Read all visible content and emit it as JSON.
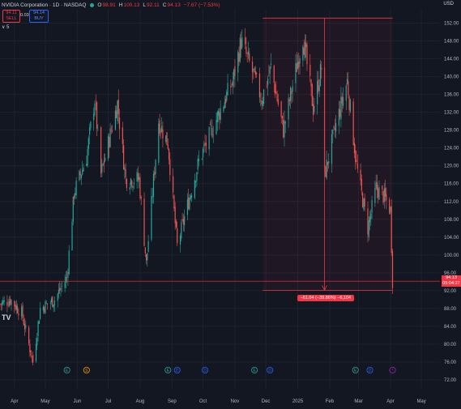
{
  "header": {
    "symbol": "NVIDIA Corporation · 1D · NASDAQ",
    "o_label": "O",
    "o_value": "98.91",
    "h_label": "H",
    "h_value": "100.13",
    "l_label": "L",
    "l_value": "92.11",
    "c_label": "C",
    "c_value": "94.13",
    "change": "−7.67 (−7.53%)"
  },
  "trade": {
    "sell_price": "94.11",
    "sell_label": "SELL",
    "spread": "0.03",
    "buy_price": "94.14",
    "buy_label": "BUY"
  },
  "volume_indicator": "∨ 5",
  "currency": "USD",
  "last_price": {
    "value": "94.13",
    "countdown": "05:04:27"
  },
  "measure": {
    "label": "−61.04 (−39.86%) −6,104"
  },
  "logo_text": "TV",
  "colors": {
    "up": "#26a69a",
    "down": "#ef5350",
    "measure": "#f23645",
    "background": "#131722",
    "grid": "#1e222d"
  },
  "chart_data": {
    "type": "candlestick",
    "title": "NVIDIA Corporation · 1D · NASDAQ",
    "ylim": [
      70,
      155
    ],
    "y_ticks": [
      "152.00",
      "148.00",
      "144.00",
      "140.00",
      "136.00",
      "132.00",
      "128.00",
      "124.00",
      "120.00",
      "116.00",
      "112.00",
      "108.00",
      "104.00",
      "100.00",
      "96.00",
      "92.00",
      "88.00",
      "84.00",
      "80.00",
      "76.00",
      "72.00"
    ],
    "x_ticks": [
      "Apr",
      "May",
      "Jun",
      "Jul",
      "Aug",
      "Sep",
      "Oct",
      "Nov",
      "Dec",
      "2025",
      "Feb",
      "Mar",
      "Apr",
      "May"
    ],
    "x_domain": [
      "2024-03-18",
      "2025-05-19"
    ],
    "grid": true,
    "series_close": [
      {
        "date": "2024-03-18",
        "close": 89
      },
      {
        "date": "2024-03-28",
        "close": 90
      },
      {
        "date": "2024-04-08",
        "close": 87
      },
      {
        "date": "2024-04-19",
        "close": 76
      },
      {
        "date": "2024-04-26",
        "close": 88
      },
      {
        "date": "2024-05-10",
        "close": 90
      },
      {
        "date": "2024-05-22",
        "close": 95
      },
      {
        "date": "2024-05-29",
        "close": 114
      },
      {
        "date": "2024-06-10",
        "close": 122
      },
      {
        "date": "2024-06-18",
        "close": 135
      },
      {
        "date": "2024-06-24",
        "close": 118
      },
      {
        "date": "2024-07-10",
        "close": 134
      },
      {
        "date": "2024-07-18",
        "close": 117
      },
      {
        "date": "2024-07-31",
        "close": 117
      },
      {
        "date": "2024-08-07",
        "close": 98
      },
      {
        "date": "2024-08-19",
        "close": 130
      },
      {
        "date": "2024-08-28",
        "close": 125
      },
      {
        "date": "2024-09-06",
        "close": 102
      },
      {
        "date": "2024-09-18",
        "close": 113
      },
      {
        "date": "2024-09-27",
        "close": 121
      },
      {
        "date": "2024-10-15",
        "close": 131
      },
      {
        "date": "2024-10-30",
        "close": 139
      },
      {
        "date": "2024-11-07",
        "close": 148
      },
      {
        "date": "2024-11-18",
        "close": 141
      },
      {
        "date": "2024-11-27",
        "close": 135
      },
      {
        "date": "2024-12-06",
        "close": 142
      },
      {
        "date": "2024-12-18",
        "close": 128
      },
      {
        "date": "2025-01-06",
        "close": 149
      },
      {
        "date": "2025-01-16",
        "close": 133
      },
      {
        "date": "2025-01-24",
        "close": 142
      },
      {
        "date": "2025-01-27",
        "close": 118
      },
      {
        "date": "2025-02-07",
        "close": 129
      },
      {
        "date": "2025-02-18",
        "close": 139
      },
      {
        "date": "2025-02-27",
        "close": 120
      },
      {
        "date": "2025-03-10",
        "close": 106
      },
      {
        "date": "2025-03-18",
        "close": 115
      },
      {
        "date": "2025-03-26",
        "close": 113
      },
      {
        "date": "2025-04-01",
        "close": 110
      },
      {
        "date": "2025-04-03",
        "close": 94.13
      }
    ],
    "measurement": {
      "from_price": 153.13,
      "to_price": 92.09,
      "change": "−61.04",
      "percent": "−39.86%",
      "ticks": "−6,104"
    },
    "horizontal_line": 94.13,
    "events": [
      {
        "date": "2024-05-22",
        "kind": "earnings",
        "label": "E"
      },
      {
        "date": "2024-06-10",
        "kind": "split",
        "label": "S"
      },
      {
        "date": "2024-08-28",
        "kind": "earnings",
        "label": "E"
      },
      {
        "date": "2024-09-06",
        "kind": "dividend",
        "label": "D"
      },
      {
        "date": "2024-10-03",
        "kind": "dividend",
        "label": "D"
      },
      {
        "date": "2024-11-20",
        "kind": "earnings",
        "label": "E"
      },
      {
        "date": "2024-12-05",
        "kind": "dividend",
        "label": "D"
      },
      {
        "date": "2025-02-26",
        "kind": "earnings",
        "label": "E"
      },
      {
        "date": "2025-03-12",
        "kind": "dividend",
        "label": "D"
      },
      {
        "date": "2025-04-03",
        "kind": "upcoming",
        "label": "*"
      }
    ]
  }
}
